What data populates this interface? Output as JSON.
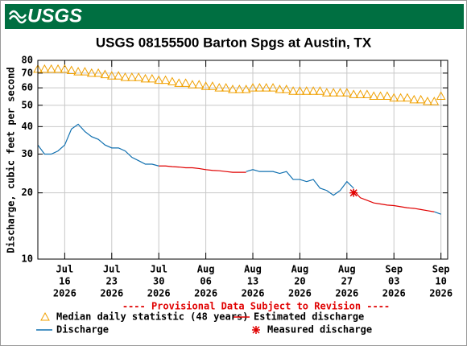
{
  "logo": "USGS",
  "chart_data": {
    "type": "line",
    "title": "USGS 08155500 Barton Spgs at Austin, TX",
    "y_label": "Discharge, cubic feet per second",
    "note": "---- Provisional Data Subject to Revision ----",
    "log_y": true,
    "grid": true,
    "xlim": [
      "2026-07-12",
      "2026-09-11"
    ],
    "ylim": [
      10,
      80
    ],
    "yticks": [
      10,
      20,
      30,
      40,
      50,
      60,
      70,
      80
    ],
    "xticks": [
      {
        "value": "2026-07-16",
        "label": [
          "Jul",
          "16",
          "2026"
        ]
      },
      {
        "value": "2026-07-23",
        "label": [
          "Jul",
          "23",
          "2026"
        ]
      },
      {
        "value": "2026-07-30",
        "label": [
          "Jul",
          "30",
          "2026"
        ]
      },
      {
        "value": "2026-08-06",
        "label": [
          "Aug",
          "06",
          "2026"
        ]
      },
      {
        "value": "2026-08-13",
        "label": [
          "Aug",
          "13",
          "2026"
        ]
      },
      {
        "value": "2026-08-20",
        "label": [
          "Aug",
          "20",
          "2026"
        ]
      },
      {
        "value": "2026-08-27",
        "label": [
          "Aug",
          "27",
          "2026"
        ]
      },
      {
        "value": "2026-09-03",
        "label": [
          "Sep",
          "03",
          "2026"
        ]
      },
      {
        "value": "2026-09-10",
        "label": [
          "Sep",
          "10",
          "2026"
        ]
      }
    ],
    "x": [
      "2026-07-12",
      "2026-07-13",
      "2026-07-14",
      "2026-07-15",
      "2026-07-16",
      "2026-07-17",
      "2026-07-18",
      "2026-07-19",
      "2026-07-20",
      "2026-07-21",
      "2026-07-22",
      "2026-07-23",
      "2026-07-24",
      "2026-07-25",
      "2026-07-26",
      "2026-07-27",
      "2026-07-28",
      "2026-07-29",
      "2026-07-30",
      "2026-07-31",
      "2026-08-01",
      "2026-08-02",
      "2026-08-03",
      "2026-08-04",
      "2026-08-05",
      "2026-08-06",
      "2026-08-07",
      "2026-08-08",
      "2026-08-09",
      "2026-08-10",
      "2026-08-11",
      "2026-08-12",
      "2026-08-13",
      "2026-08-14",
      "2026-08-15",
      "2026-08-16",
      "2026-08-17",
      "2026-08-18",
      "2026-08-19",
      "2026-08-20",
      "2026-08-21",
      "2026-08-22",
      "2026-08-23",
      "2026-08-24",
      "2026-08-25",
      "2026-08-26",
      "2026-08-27",
      "2026-08-28",
      "2026-08-29",
      "2026-08-30",
      "2026-08-31",
      "2026-09-01",
      "2026-09-02",
      "2026-09-03",
      "2026-09-04",
      "2026-09-05",
      "2026-09-06",
      "2026-09-07",
      "2026-09-08",
      "2026-09-09",
      "2026-09-10"
    ],
    "series": [
      {
        "name": "Median daily statistic (48 years)",
        "color": "#f0a000",
        "marker": "triangle",
        "values": [
          73,
          73,
          73,
          73,
          73,
          72,
          71,
          71,
          70,
          70,
          69,
          68,
          68,
          67,
          67,
          67,
          66,
          66,
          65,
          65,
          64,
          63,
          63,
          62,
          62,
          61,
          61,
          60,
          60,
          59,
          59,
          59,
          60,
          60,
          60,
          60,
          59,
          59,
          58,
          58,
          58,
          58,
          58,
          57,
          57,
          57,
          57,
          56,
          56,
          56,
          55,
          55,
          55,
          54,
          54,
          54,
          53,
          53,
          52,
          52,
          55
        ]
      },
      {
        "name": "Discharge",
        "color": "#1070b0",
        "values": [
          33,
          30,
          30,
          31,
          33,
          39,
          41,
          38,
          36,
          35,
          33,
          32,
          32,
          31,
          29,
          28,
          27,
          27,
          26.5,
          null,
          null,
          null,
          null,
          null,
          null,
          null,
          null,
          null,
          null,
          null,
          null,
          25,
          25.5,
          25,
          25,
          25,
          24.5,
          25,
          23,
          23,
          22.5,
          23,
          21,
          20.5,
          19.5,
          20.5,
          22.5,
          21,
          null,
          null,
          null,
          null,
          null,
          null,
          null,
          null,
          null,
          null,
          null,
          16.4,
          16
        ]
      },
      {
        "name": "Estimated discharge",
        "color": "#e00000",
        "values": [
          null,
          null,
          null,
          null,
          null,
          null,
          null,
          null,
          null,
          null,
          null,
          null,
          null,
          null,
          null,
          null,
          null,
          null,
          26.5,
          26.5,
          26.3,
          26.2,
          26,
          26,
          25.8,
          25.5,
          25.3,
          25.2,
          25,
          24.8,
          24.8,
          24.8,
          null,
          null,
          null,
          null,
          null,
          null,
          null,
          null,
          null,
          null,
          null,
          null,
          null,
          null,
          null,
          20.5,
          19,
          18.5,
          18,
          17.8,
          17.6,
          17.5,
          17.3,
          17.1,
          17,
          16.8,
          16.6,
          16.4,
          null
        ]
      },
      {
        "name": "Measured discharge",
        "color": "#e00000",
        "marker": "star",
        "values": [
          null,
          null,
          null,
          null,
          null,
          null,
          null,
          null,
          null,
          null,
          null,
          null,
          null,
          null,
          null,
          null,
          null,
          null,
          null,
          null,
          null,
          null,
          null,
          null,
          null,
          null,
          null,
          null,
          null,
          null,
          null,
          null,
          null,
          null,
          null,
          null,
          null,
          null,
          null,
          null,
          null,
          null,
          null,
          null,
          null,
          null,
          null,
          20,
          null,
          null,
          null,
          null,
          null,
          null,
          null,
          null,
          null,
          null,
          null,
          null,
          null
        ]
      }
    ]
  }
}
